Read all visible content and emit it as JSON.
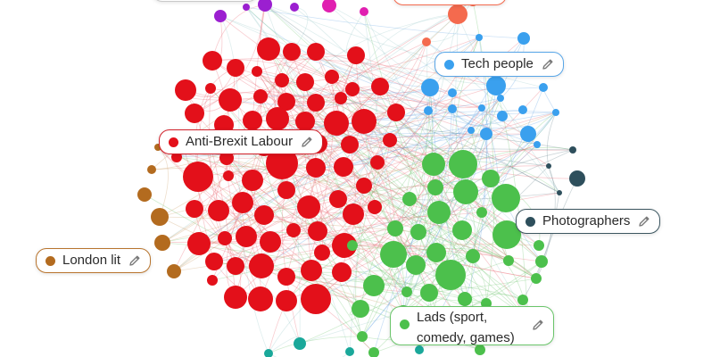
{
  "clusters": [
    {
      "id": "anti-brexit-labour",
      "label": "Anti-Brexit Labour",
      "color": "#e3101a",
      "border": "#d2202a"
    },
    {
      "id": "tech-people",
      "label": "Tech people",
      "color": "#3aa0ee",
      "border": "#58a6e8"
    },
    {
      "id": "photographers",
      "label": "Photographers",
      "color": "#2e4f5c",
      "border": "#3c5660"
    },
    {
      "id": "london-lit",
      "label": "London lit",
      "color": "#b36b1f",
      "border": "#b8742d"
    },
    {
      "id": "lads",
      "label": "Lads (sport, comedy, games)",
      "color": "#4cc04c",
      "border": "#6ac56a"
    }
  ],
  "extra_colors": {
    "purple": "#9b1fd0",
    "pink": "#e020b0",
    "orange": "#f46a4e",
    "teal": "#1aa89a"
  },
  "icons": {
    "edit": "pencil-icon"
  }
}
